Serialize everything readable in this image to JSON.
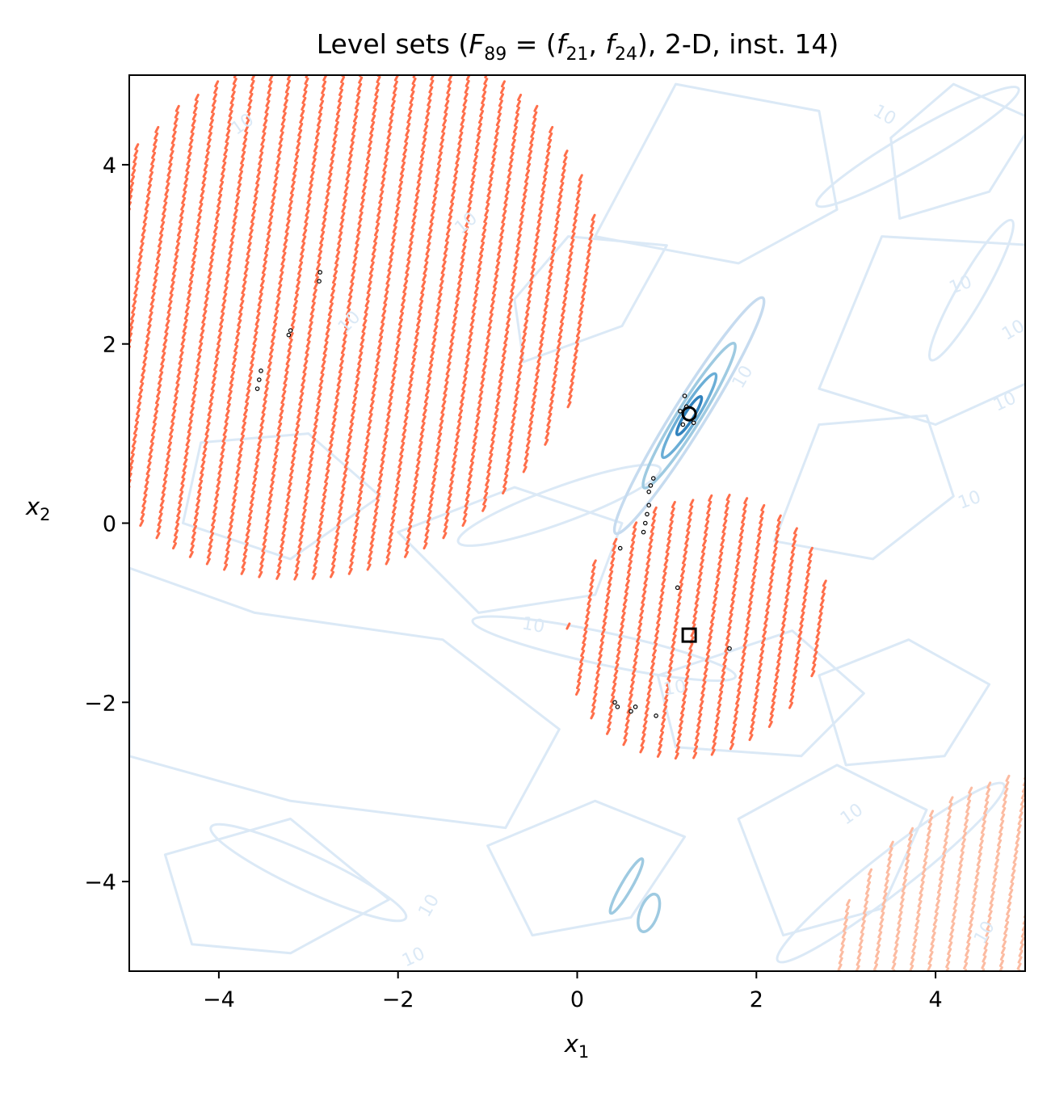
{
  "chart_data": {
    "type": "contour",
    "title_parts": {
      "prefix": "Level sets (",
      "F": "F",
      "F_sub": "89",
      "eq": " = (",
      "f1": "f",
      "f1_sub": "21",
      "comma": ", ",
      "f2": "f",
      "f2_sub": "24",
      "suffix": "), 2-D, inst. 14)"
    },
    "xlabel": "x",
    "xlabel_sub": "1",
    "ylabel": "x",
    "ylabel_sub": "2",
    "xlim": [
      -5,
      5
    ],
    "ylim": [
      -5,
      5
    ],
    "xticks": [
      -4,
      -2,
      0,
      2,
      4
    ],
    "yticks": [
      -4,
      -2,
      0,
      2,
      4
    ],
    "xtick_labels": [
      "−4",
      "−2",
      "0",
      "2",
      "4"
    ],
    "ytick_labels": [
      "−4",
      "−2",
      "0",
      "2",
      "4"
    ],
    "contour_label": "10",
    "contour_colors": [
      "#dbe9f6",
      "#c6dbef",
      "#9ecae1",
      "#6baed6",
      "#3182bd"
    ],
    "hatch_color_main": "#ff6e4a",
    "hatch_color_light": "#fcbba1",
    "blue_ellipses": [
      {
        "cx": 1.25,
        "cy": 1.2,
        "rx": 1.55,
        "ry": 0.18,
        "angle": 58,
        "level": 0
      },
      {
        "cx": 1.25,
        "cy": 1.2,
        "rx": 0.95,
        "ry": 0.13,
        "angle": 58,
        "level": 1
      },
      {
        "cx": 1.25,
        "cy": 1.2,
        "rx": 0.55,
        "ry": 0.09,
        "angle": 58,
        "level": 2
      },
      {
        "cx": 1.25,
        "cy": 1.2,
        "rx": 0.25,
        "ry": 0.05,
        "angle": 58,
        "level": 3
      },
      {
        "cx": 0.55,
        "cy": -4.05,
        "rx": 0.35,
        "ry": 0.06,
        "angle": 60,
        "level": 1
      },
      {
        "cx": 0.8,
        "cy": -4.35,
        "rx": 0.22,
        "ry": 0.1,
        "angle": 70,
        "level": 1
      }
    ],
    "hatch_regions": [
      {
        "cx": -2.75,
        "cy": 2.4,
        "r": 3.0,
        "color": "main",
        "clip": true
      },
      {
        "cx": 1.35,
        "cy": -1.15,
        "r": 1.45,
        "color": "main",
        "clip": false
      },
      {
        "cx": 5.2,
        "cy": -5.2,
        "r": 2.5,
        "color": "light",
        "clip": true
      }
    ],
    "archive_points": [
      [
        -3.55,
        1.6
      ],
      [
        -3.53,
        1.7
      ],
      [
        -3.57,
        1.5
      ],
      [
        -3.2,
        2.15
      ],
      [
        -3.22,
        2.1
      ],
      [
        -2.87,
        2.8
      ],
      [
        -2.88,
        2.7
      ],
      [
        0.85,
        0.5
      ],
      [
        0.82,
        0.42
      ],
      [
        0.8,
        0.35
      ],
      [
        0.78,
        0.1
      ],
      [
        0.76,
        0.0
      ],
      [
        0.74,
        -0.1
      ],
      [
        0.8,
        0.2
      ],
      [
        0.48,
        -0.28
      ],
      [
        1.12,
        -0.72
      ],
      [
        1.7,
        -1.4
      ],
      [
        0.42,
        -2.0
      ],
      [
        0.45,
        -2.05
      ],
      [
        0.6,
        -2.1
      ],
      [
        0.65,
        -2.05
      ],
      [
        0.88,
        -2.15
      ],
      [
        1.2,
        1.42
      ],
      [
        1.22,
        1.3
      ],
      [
        1.18,
        1.1
      ],
      [
        1.3,
        1.12
      ],
      [
        1.15,
        1.25
      ]
    ],
    "optimum_circle": {
      "x": 1.25,
      "y": 1.22
    },
    "reference_square": {
      "x": 1.25,
      "y": -1.25
    }
  }
}
